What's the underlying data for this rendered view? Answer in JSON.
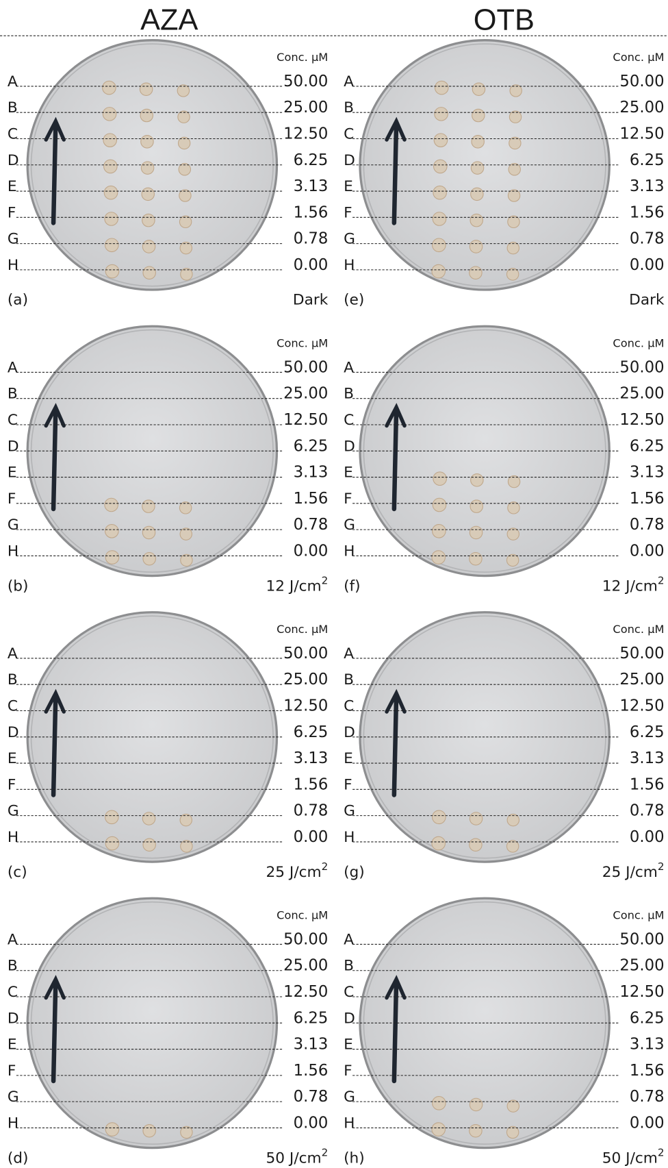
{
  "columns": [
    {
      "title": "AZA",
      "panels": [
        {
          "label": "(a)",
          "condition": {
            "text": "Dark"
          }
        },
        {
          "label": "(b)",
          "condition": {
            "text": "12 J/cm",
            "sup": "2"
          }
        },
        {
          "label": "(c)",
          "condition": {
            "text": "25 J/cm",
            "sup": "2"
          }
        },
        {
          "label": "(d)",
          "condition": {
            "text": "50 J/cm",
            "sup": "2"
          }
        }
      ]
    },
    {
      "title": "OTB",
      "panels": [
        {
          "label": "(e)",
          "condition": {
            "text": "Dark"
          }
        },
        {
          "label": "(f)",
          "condition": {
            "text": "12 J/cm",
            "sup": "2"
          }
        },
        {
          "label": "(g)",
          "condition": {
            "text": "25 J/cm",
            "sup": "2"
          }
        },
        {
          "label": "(h)",
          "condition": {
            "text": "50 J/cm",
            "sup": "2"
          }
        }
      ]
    }
  ],
  "conc_header": "Conc. µM",
  "rows": [
    "A",
    "B",
    "C",
    "D",
    "E",
    "F",
    "G",
    "H"
  ],
  "concentrations": [
    "50.00",
    "25.00",
    "12.50",
    "6.25",
    "3.13",
    "1.56",
    "0.78",
    "0.00"
  ]
}
